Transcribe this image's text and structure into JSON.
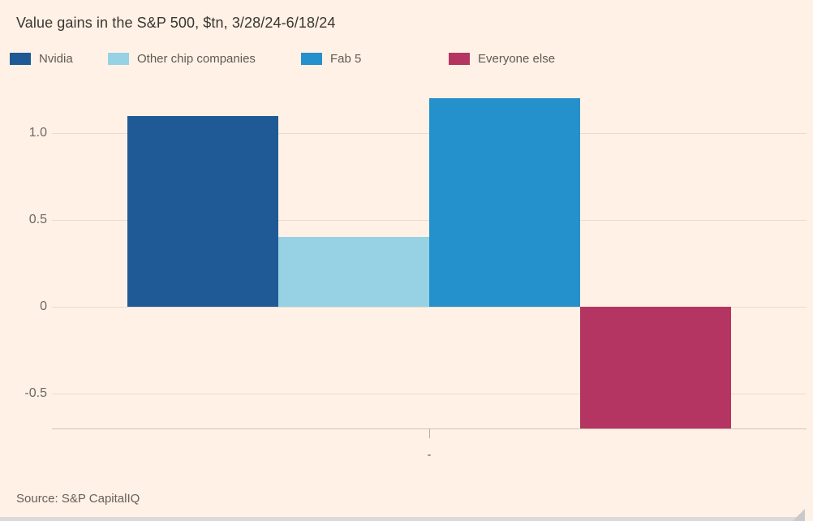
{
  "chart_data": {
    "type": "bar",
    "title": "Value gains in the S&P 500, $tn, 3/28/24-6/18/24",
    "source": "Source: S&P CapitalIQ",
    "x_tick_label": "-",
    "y_ticks": [
      "1.0",
      "0.5",
      "0",
      "-0.5"
    ],
    "ylim": [
      -0.7,
      1.25
    ],
    "grid": true,
    "legend_position": "top",
    "background_color": "#fff1e5",
    "series": [
      {
        "name": "Nvidia",
        "value": 1.1,
        "color": "#1f5a96"
      },
      {
        "name": "Other chip companies",
        "value": 0.4,
        "color": "#96d2e4"
      },
      {
        "name": "Fab 5",
        "value": 1.2,
        "color": "#2491cd"
      },
      {
        "name": "Everyone else",
        "value": -0.7,
        "color": "#b43561"
      }
    ]
  }
}
